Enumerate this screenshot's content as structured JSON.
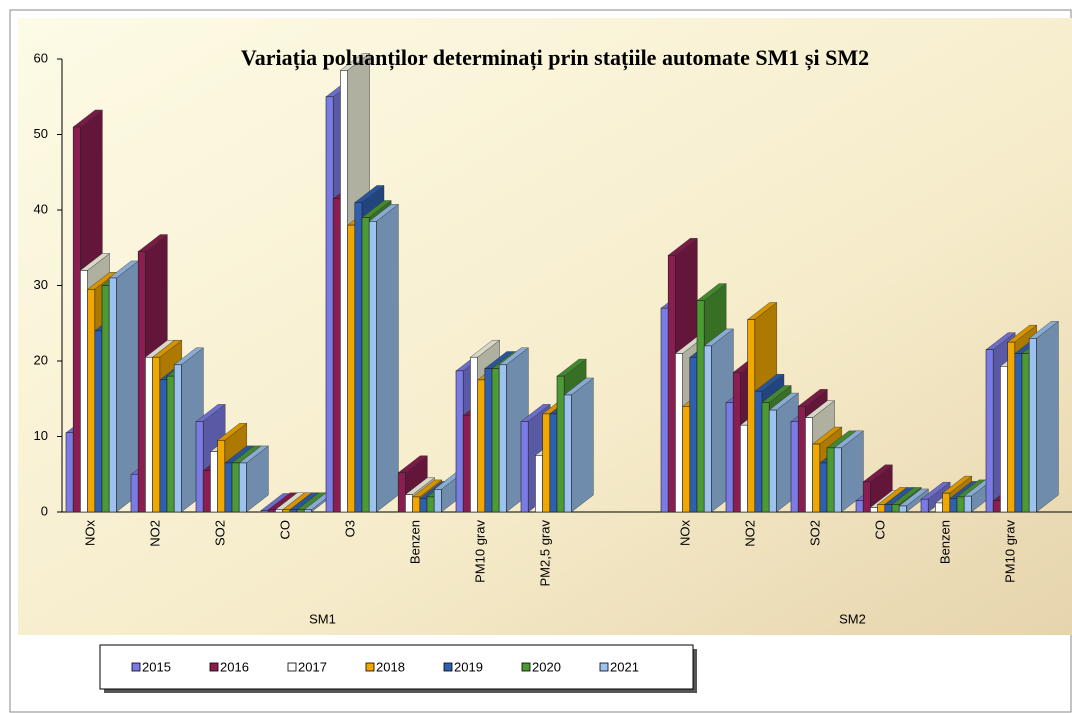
{
  "chart_data": {
    "type": "bar3d",
    "title": "Variația poluanților determinați prin stațiile automate SM1 și SM2",
    "groups": [
      {
        "name": "SM1",
        "categories": [
          "NOx",
          "NO2",
          "SO2",
          "CO",
          "O3",
          "Benzen",
          "PM10 grav",
          "PM2,5 grav"
        ]
      },
      {
        "name": "SM2",
        "categories": [
          "NOx",
          "NO2",
          "SO2",
          "CO",
          "Benzen",
          "PM10 grav"
        ]
      }
    ],
    "series": [
      {
        "name": "2015",
        "color": "#7b7be6",
        "values": [
          10.5,
          5,
          12,
          0.2,
          55,
          null,
          18.7,
          12,
          27,
          14.5,
          12,
          1.5,
          1.7,
          21.5
        ]
      },
      {
        "name": "2016",
        "color": "#8b1e50",
        "values": [
          51,
          34.5,
          5.5,
          0.3,
          41.5,
          5.2,
          12.8,
          null,
          34,
          18.5,
          14,
          4,
          null,
          1.5
        ]
      },
      {
        "name": "2017",
        "color": "#ffffff",
        "values": [
          32,
          20.5,
          8,
          0.3,
          58.5,
          2.3,
          20.5,
          7.5,
          21,
          11.5,
          12.5,
          0.6,
          1.2,
          19.3
        ]
      },
      {
        "name": "2018",
        "color": "#f0a800",
        "values": [
          29.5,
          20.5,
          9.5,
          0.3,
          38,
          2,
          17.5,
          13,
          14,
          25.5,
          9,
          1,
          2.5,
          22.5
        ]
      },
      {
        "name": "2019",
        "color": "#2f5fb0",
        "values": [
          24,
          17.5,
          6.5,
          0.3,
          41,
          1.8,
          19,
          13,
          20.5,
          16,
          6.5,
          1,
          1.8,
          21
        ]
      },
      {
        "name": "2020",
        "color": "#4c9a34",
        "values": [
          30,
          18,
          6.5,
          0.3,
          39,
          2,
          19,
          18,
          28,
          14.5,
          8.5,
          1,
          2,
          21
        ]
      },
      {
        "name": "2021",
        "color": "#9cc2f0",
        "values": [
          31,
          19.5,
          6.5,
          0.3,
          38.5,
          3,
          19.5,
          15.5,
          22,
          13.5,
          8.5,
          0.8,
          2.1,
          23
        ]
      }
    ],
    "ylim": [
      0,
      60
    ],
    "yticks": [
      0,
      10,
      20,
      30,
      40,
      50,
      60
    ],
    "legend": "bottom"
  }
}
